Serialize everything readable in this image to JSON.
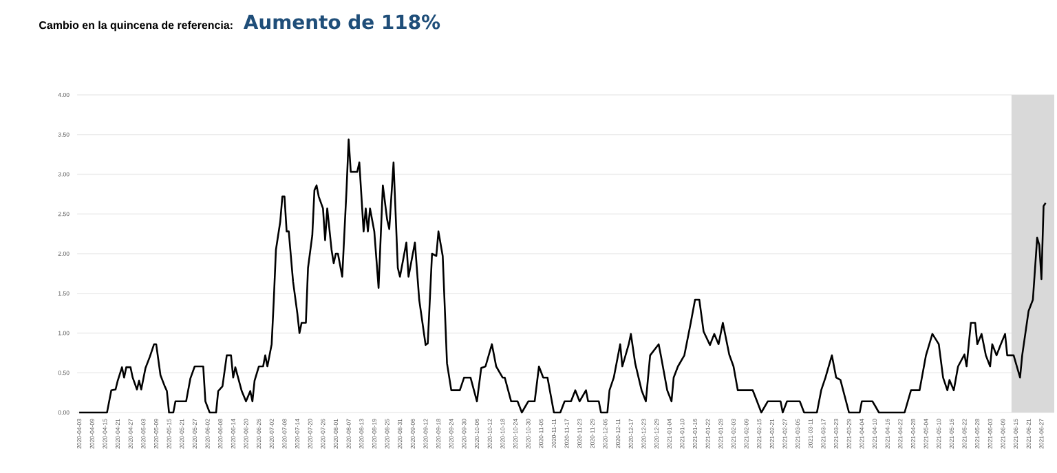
{
  "chart_data": {
    "type": "line",
    "title": "Cambio en la quincena de referencia:",
    "subtitle": "Aumento de 118%",
    "grid": "y",
    "xlim": [
      "2020-04-02",
      "2021-07-03"
    ],
    "ylim": [
      0,
      4
    ],
    "yticks": [
      {
        "value": 0,
        "label": "0.00"
      },
      {
        "value": 0.5,
        "label": "0.50"
      },
      {
        "value": 1,
        "label": "1.00"
      },
      {
        "value": 1.5,
        "label": "1.50"
      },
      {
        "value": 2,
        "label": "2.00"
      },
      {
        "value": 2.5,
        "label": "2.50"
      },
      {
        "value": 3,
        "label": "3.00"
      },
      {
        "value": 3.5,
        "label": "3.50"
      },
      {
        "value": 4,
        "label": "4.00"
      }
    ],
    "xticks": [
      "2020-04-03",
      "2020-04-09",
      "2020-04-15",
      "2020-04-21",
      "2020-04-27",
      "2020-05-03",
      "2020-05-09",
      "2020-05-15",
      "2020-05-21",
      "2020-05-27",
      "2020-06-02",
      "2020-06-08",
      "2020-06-14",
      "2020-06-20",
      "2020-06-26",
      "2020-07-02",
      "2020-07-08",
      "2020-07-14",
      "2020-07-20",
      "2020-07-26",
      "2020-08-01",
      "2020-08-07",
      "2020-08-13",
      "2020-08-19",
      "2020-08-25",
      "2020-08-31",
      "2020-09-06",
      "2020-09-12",
      "2020-09-18",
      "2020-09-24",
      "2020-09-30",
      "2020-10-06",
      "2020-10-12",
      "2020-10-18",
      "2020-10-24",
      "2020-10-30",
      "2020-11-05",
      "2020-11-11",
      "2020-11-17",
      "2020-11-23",
      "2020-11-29",
      "2020-12-05",
      "2020-12-11",
      "2020-12-17",
      "2020-12-23",
      "2020-12-29",
      "2021-01-04",
      "2021-01-10",
      "2021-01-16",
      "2021-01-22",
      "2021-01-28",
      "2021-02-03",
      "2021-02-09",
      "2021-02-15",
      "2021-02-21",
      "2021-02-27",
      "2021-03-05",
      "2021-03-11",
      "2021-03-17",
      "2021-03-23",
      "2021-03-29",
      "2021-04-04",
      "2021-04-10",
      "2021-04-16",
      "2021-04-22",
      "2021-04-28",
      "2021-05-04",
      "2021-05-10",
      "2021-05-16",
      "2021-05-22",
      "2021-05-28",
      "2021-06-03",
      "2021-06-09",
      "2021-06-15",
      "2021-06-21",
      "2021-06-27"
    ],
    "bands": [
      {
        "axis": "x",
        "from": "2021-06-13",
        "to": "2021-07-03",
        "color": "#d9d9d9"
      }
    ],
    "series": [
      {
        "color": "#000000",
        "x": [
          "2020-04-03",
          "2020-04-16",
          "2020-04-18",
          "2020-04-20",
          "2020-04-21",
          "2020-04-23",
          "2020-04-24",
          "2020-04-25",
          "2020-04-27",
          "2020-04-28",
          "2020-04-30",
          "2020-05-01",
          "2020-05-02",
          "2020-05-04",
          "2020-05-06",
          "2020-05-08",
          "2020-05-09",
          "2020-05-11",
          "2020-05-13",
          "2020-05-14",
          "2020-05-15",
          "2020-05-17",
          "2020-05-18",
          "2020-05-23",
          "2020-05-25",
          "2020-05-27",
          "2020-05-31",
          "2020-06-01",
          "2020-06-03",
          "2020-06-06",
          "2020-06-07",
          "2020-06-09",
          "2020-06-11",
          "2020-06-13",
          "2020-06-14",
          "2020-06-15",
          "2020-06-18",
          "2020-06-20",
          "2020-06-22",
          "2020-06-23",
          "2020-06-24",
          "2020-06-26",
          "2020-06-28",
          "2020-06-29",
          "2020-06-30",
          "2020-07-02",
          "2020-07-03",
          "2020-07-04",
          "2020-07-06",
          "2020-07-07",
          "2020-07-08",
          "2020-07-09",
          "2020-07-10",
          "2020-07-12",
          "2020-07-14",
          "2020-07-15",
          "2020-07-16",
          "2020-07-18",
          "2020-07-19",
          "2020-07-21",
          "2020-07-22",
          "2020-07-23",
          "2020-07-24",
          "2020-07-26",
          "2020-07-27",
          "2020-07-28",
          "2020-07-30",
          "2020-07-31",
          "2020-08-01",
          "2020-08-02",
          "2020-08-04",
          "2020-08-06",
          "2020-08-07",
          "2020-08-08",
          "2020-08-11",
          "2020-08-12",
          "2020-08-14",
          "2020-08-15",
          "2020-08-16",
          "2020-08-17",
          "2020-08-19",
          "2020-08-21",
          "2020-08-23",
          "2020-08-25",
          "2020-08-26",
          "2020-08-28",
          "2020-08-30",
          "2020-08-31",
          "2020-09-03",
          "2020-09-04",
          "2020-09-07",
          "2020-09-09",
          "2020-09-12",
          "2020-09-13",
          "2020-09-15",
          "2020-09-17",
          "2020-09-18",
          "2020-09-20",
          "2020-09-22",
          "2020-09-24",
          "2020-09-28",
          "2020-09-30",
          "2020-10-03",
          "2020-10-06",
          "2020-10-08",
          "2020-10-10",
          "2020-10-13",
          "2020-10-15",
          "2020-10-18",
          "2020-10-19",
          "2020-10-22",
          "2020-10-25",
          "2020-10-27",
          "2020-10-30",
          "2020-11-02",
          "2020-11-04",
          "2020-11-06",
          "2020-11-08",
          "2020-11-11",
          "2020-11-14",
          "2020-11-16",
          "2020-11-19",
          "2020-11-21",
          "2020-11-23",
          "2020-11-26",
          "2020-11-27",
          "2020-12-02",
          "2020-12-03",
          "2020-12-06",
          "2020-12-07",
          "2020-12-09",
          "2020-12-12",
          "2020-12-13",
          "2020-12-16",
          "2020-12-17",
          "2020-12-19",
          "2020-12-22",
          "2020-12-24",
          "2020-12-26",
          "2020-12-30",
          "2020-12-31",
          "2021-01-03",
          "2021-01-05",
          "2021-01-06",
          "2021-01-08",
          "2021-01-11",
          "2021-01-14",
          "2021-01-16",
          "2021-01-18",
          "2021-01-20",
          "2021-01-23",
          "2021-01-25",
          "2021-01-27",
          "2021-01-29",
          "2021-02-01",
          "2021-02-03",
          "2021-02-05",
          "2021-02-12",
          "2021-02-14",
          "2021-02-16",
          "2021-02-19",
          "2021-02-25",
          "2021-02-26",
          "2021-02-28",
          "2021-03-06",
          "2021-03-08",
          "2021-03-14",
          "2021-03-16",
          "2021-03-18",
          "2021-03-21",
          "2021-03-23",
          "2021-03-25",
          "2021-03-29",
          "2021-04-03",
          "2021-04-04",
          "2021-04-09",
          "2021-04-12",
          "2021-04-24",
          "2021-04-27",
          "2021-05-01",
          "2021-05-04",
          "2021-05-07",
          "2021-05-10",
          "2021-05-12",
          "2021-05-14",
          "2021-05-15",
          "2021-05-17",
          "2021-05-19",
          "2021-05-22",
          "2021-05-23",
          "2021-05-25",
          "2021-05-27",
          "2021-05-28",
          "2021-05-30",
          "2021-06-01",
          "2021-06-03",
          "2021-06-04",
          "2021-06-06",
          "2021-06-08",
          "2021-06-10",
          "2021-06-11",
          "2021-06-14",
          "2021-06-17",
          "2021-06-18",
          "2021-06-21",
          "2021-06-23",
          "2021-06-25",
          "2021-06-26",
          "2021-06-27",
          "2021-06-28",
          "2021-06-29"
        ],
        "values": [
          0,
          0,
          0.28,
          0.29,
          0.4,
          0.57,
          0.44,
          0.57,
          0.57,
          0.44,
          0.29,
          0.4,
          0.29,
          0.56,
          0.7,
          0.86,
          0.86,
          0.47,
          0.33,
          0.27,
          0,
          0,
          0.14,
          0.14,
          0.43,
          0.58,
          0.58,
          0.14,
          0,
          0,
          0.27,
          0.33,
          0.72,
          0.72,
          0.44,
          0.57,
          0.27,
          0.14,
          0.27,
          0.14,
          0.4,
          0.58,
          0.58,
          0.72,
          0.58,
          0.86,
          1.42,
          2.05,
          2.4,
          2.72,
          2.72,
          2.28,
          2.28,
          1.65,
          1.25,
          1.0,
          1.13,
          1.13,
          1.82,
          2.23,
          2.8,
          2.86,
          2.72,
          2.57,
          2.17,
          2.57,
          2.05,
          1.88,
          2.0,
          2.0,
          1.71,
          2.8,
          3.44,
          3.03,
          3.03,
          3.15,
          2.28,
          2.57,
          2.28,
          2.57,
          2.28,
          1.57,
          2.86,
          2.43,
          2.31,
          3.15,
          1.82,
          1.71,
          2.14,
          1.71,
          2.14,
          1.42,
          0.85,
          0.87,
          2.0,
          1.97,
          2.28,
          1.97,
          0.62,
          0.28,
          0.28,
          0.44,
          0.44,
          0.14,
          0.56,
          0.58,
          0.86,
          0.58,
          0.44,
          0.44,
          0.14,
          0.14,
          0,
          0.14,
          0.14,
          0.58,
          0.44,
          0.44,
          0,
          0,
          0.14,
          0.14,
          0.28,
          0.14,
          0.28,
          0.14,
          0.14,
          0,
          0,
          0.28,
          0.44,
          0.86,
          0.58,
          0.86,
          0.99,
          0.62,
          0.28,
          0.14,
          0.72,
          0.86,
          0.72,
          0.28,
          0.14,
          0.44,
          0.58,
          0.72,
          1.13,
          1.42,
          1.42,
          1.02,
          0.85,
          0.99,
          0.86,
          1.13,
          0.73,
          0.58,
          0.28,
          0.28,
          0.14,
          0,
          0.14,
          0.14,
          0,
          0.14,
          0.14,
          0,
          0,
          0.28,
          0.44,
          0.72,
          0.44,
          0.41,
          0,
          0,
          0.14,
          0.14,
          0,
          0,
          0.28,
          0.28,
          0.72,
          0.99,
          0.86,
          0.44,
          0.28,
          0.41,
          0.28,
          0.58,
          0.73,
          0.58,
          1.13,
          1.13,
          0.86,
          0.99,
          0.72,
          0.58,
          0.86,
          0.72,
          0.86,
          0.99,
          0.72,
          0.72,
          0.44,
          0.72,
          1.28,
          1.42,
          2.2,
          2.11,
          1.68,
          2.6,
          2.64
        ]
      }
    ]
  }
}
